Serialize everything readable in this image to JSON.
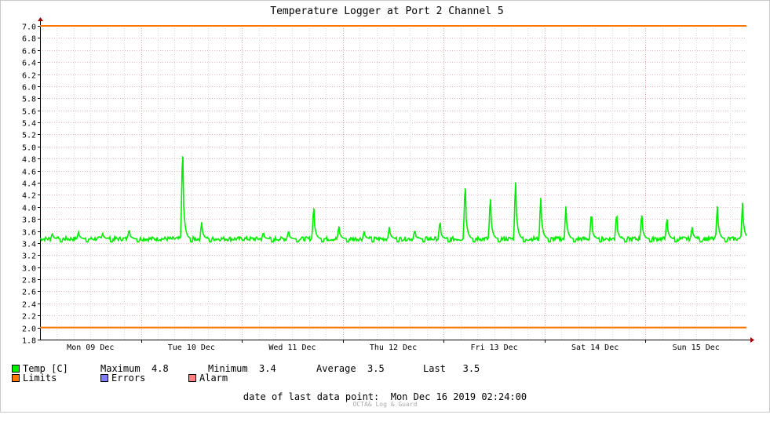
{
  "chart_data": {
    "type": "line",
    "title": "Temperature Logger at Port 2 Channel 5",
    "ylim": [
      1.8,
      7.0
    ],
    "y_ticks": [
      "1.8",
      "2.0",
      "2.2",
      "2.4",
      "2.6",
      "2.8",
      "3.0",
      "3.2",
      "3.4",
      "3.6",
      "3.8",
      "4.0",
      "4.2",
      "4.4",
      "4.6",
      "4.8",
      "5.0",
      "5.2",
      "5.4",
      "5.6",
      "5.8",
      "6.0",
      "6.2",
      "6.4",
      "6.6",
      "6.8",
      "7.0"
    ],
    "x_range_days": [
      "Mon 09 Dec",
      "Mon 16 Dec"
    ],
    "x_tick_labels": [
      "Mon 09 Dec",
      "Tue 10 Dec",
      "Wed 11 Dec",
      "Thu 12 Dec",
      "Fri 13 Dec",
      "Sat 14 Dec",
      "Sun 15 Dec"
    ],
    "grid": true,
    "limits": {
      "upper": 7.0,
      "lower": 2.0,
      "color": "#ff7700"
    },
    "series": [
      {
        "name": "Temp [C]",
        "color": "#00ee00",
        "baseline": 3.47,
        "peaks": [
          {
            "day": 0.12,
            "value": 3.55
          },
          {
            "day": 0.38,
            "value": 3.58
          },
          {
            "day": 0.62,
            "value": 3.56
          },
          {
            "day": 0.88,
            "value": 3.6
          },
          {
            "day": 1.41,
            "value": 4.83
          },
          {
            "day": 1.6,
            "value": 3.74
          },
          {
            "day": 2.21,
            "value": 3.56
          },
          {
            "day": 2.46,
            "value": 3.58
          },
          {
            "day": 2.71,
            "value": 3.97
          },
          {
            "day": 2.96,
            "value": 3.67
          },
          {
            "day": 3.21,
            "value": 3.59
          },
          {
            "day": 3.46,
            "value": 3.66
          },
          {
            "day": 3.71,
            "value": 3.59
          },
          {
            "day": 3.96,
            "value": 3.72
          },
          {
            "day": 4.21,
            "value": 4.3
          },
          {
            "day": 4.46,
            "value": 4.12
          },
          {
            "day": 4.71,
            "value": 4.4
          },
          {
            "day": 4.96,
            "value": 4.14
          },
          {
            "day": 5.21,
            "value": 4.0
          },
          {
            "day": 5.46,
            "value": 3.83
          },
          {
            "day": 5.71,
            "value": 3.83
          },
          {
            "day": 5.96,
            "value": 3.85
          },
          {
            "day": 6.21,
            "value": 3.79
          },
          {
            "day": 6.46,
            "value": 3.66
          },
          {
            "day": 6.71,
            "value": 4.0
          },
          {
            "day": 6.96,
            "value": 4.06
          }
        ]
      }
    ]
  },
  "legend": {
    "temp_label": "Temp [C]",
    "maximum_label": "Maximum",
    "maximum_value": "4.8",
    "minimum_label": "Minimum",
    "minimum_value": "3.4",
    "average_label": "Average",
    "average_value": "3.5",
    "last_label": "Last",
    "last_value": "3.5",
    "limits_label": "Limits",
    "errors_label": "Errors",
    "alarm_label": "Alarm",
    "colors": {
      "temp": "#00ee00",
      "limits": "#ff7700",
      "errors": "#8080ff",
      "alarm": "#ff8080"
    }
  },
  "footer": {
    "date_label": "date of last data point:",
    "date_value": "Mon Dec 16 2019 02:24:00",
    "watermark": "OCTA& Log & Guard"
  }
}
